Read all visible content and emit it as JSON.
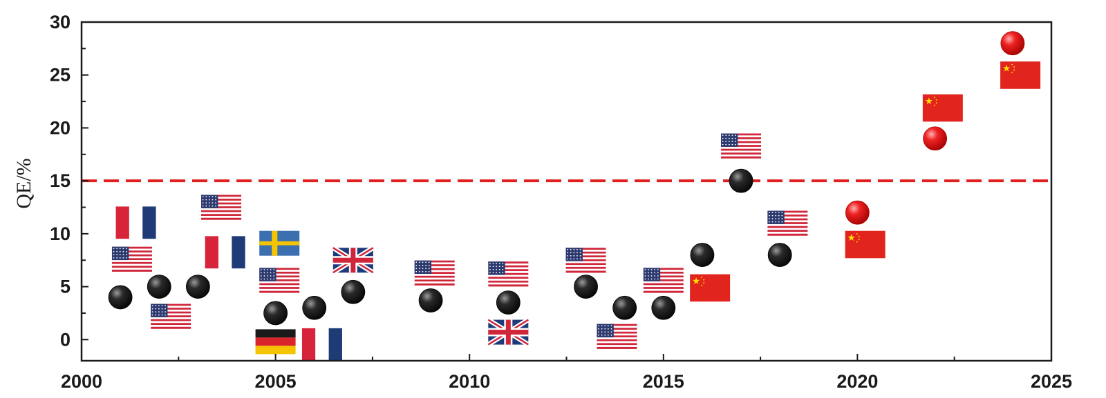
{
  "chart_data": {
    "type": "scatter",
    "title": "",
    "xlabel": "",
    "ylabel": "QE/%",
    "xlim": [
      2000,
      2025
    ],
    "ylim": [
      -2,
      30
    ],
    "x_ticks": [
      2000,
      2005,
      2010,
      2015,
      2020,
      2025
    ],
    "y_ticks": [
      0,
      5,
      10,
      15,
      20,
      25,
      30
    ],
    "grid": false,
    "legend": "none",
    "reference_line": {
      "y": 15,
      "style": "dashed",
      "color": "#e02020"
    },
    "colors": {
      "point": "#1e1e1e",
      "highlight_point": "#e81818",
      "axis": "#1a1a1a"
    },
    "series": [
      {
        "color": "#1e1e1e",
        "points": [
          {
            "x": 2001,
            "y": 4.0
          },
          {
            "x": 2002,
            "y": 5.0
          },
          {
            "x": 2003,
            "y": 5.0
          },
          {
            "x": 2005,
            "y": 2.5
          },
          {
            "x": 2006,
            "y": 3.0
          },
          {
            "x": 2007,
            "y": 4.5
          },
          {
            "x": 2009,
            "y": 3.7
          },
          {
            "x": 2011,
            "y": 3.5
          },
          {
            "x": 2013,
            "y": 5.0
          },
          {
            "x": 2014,
            "y": 3.0
          },
          {
            "x": 2015,
            "y": 3.0
          },
          {
            "x": 2016,
            "y": 8.0
          },
          {
            "x": 2017,
            "y": 15.0
          },
          {
            "x": 2018,
            "y": 8.0
          }
        ]
      },
      {
        "color": "#e81818",
        "points": [
          {
            "x": 2020,
            "y": 12.0
          },
          {
            "x": 2022,
            "y": 19.0
          },
          {
            "x": 2024,
            "y": 28.0
          }
        ]
      }
    ],
    "flag_markers": [
      {
        "country": "France",
        "x": 2001.4,
        "y": 11.4
      },
      {
        "country": "USA",
        "x": 2001.3,
        "y": 7.6
      },
      {
        "country": "USA",
        "x": 2002.3,
        "y": 2.2
      },
      {
        "country": "USA",
        "x": 2003.6,
        "y": 12.5
      },
      {
        "country": "France",
        "x": 2003.7,
        "y": 8.6
      },
      {
        "country": "Sweden",
        "x": 2005.1,
        "y": 9.1
      },
      {
        "country": "USA",
        "x": 2005.1,
        "y": 5.6
      },
      {
        "country": "Germany",
        "x": 2005.0,
        "y": -0.2
      },
      {
        "country": "France",
        "x": 2006.2,
        "y": -0.1
      },
      {
        "country": "UK",
        "x": 2007.0,
        "y": 7.5
      },
      {
        "country": "USA",
        "x": 2009.1,
        "y": 6.3
      },
      {
        "country": "USA",
        "x": 2011.0,
        "y": 6.2
      },
      {
        "country": "UK",
        "x": 2011.0,
        "y": 0.7
      },
      {
        "country": "USA",
        "x": 2013.0,
        "y": 7.5
      },
      {
        "country": "USA",
        "x": 2013.8,
        "y": 0.3
      },
      {
        "country": "USA",
        "x": 2015.0,
        "y": 5.6
      },
      {
        "country": "China",
        "x": 2016.2,
        "y": 5.0
      },
      {
        "country": "USA",
        "x": 2017.0,
        "y": 18.3
      },
      {
        "country": "USA",
        "x": 2018.2,
        "y": 11.0
      },
      {
        "country": "China",
        "x": 2020.2,
        "y": 9.1
      },
      {
        "country": "China",
        "x": 2022.2,
        "y": 22.0
      },
      {
        "country": "China",
        "x": 2024.2,
        "y": 25.1
      }
    ]
  }
}
